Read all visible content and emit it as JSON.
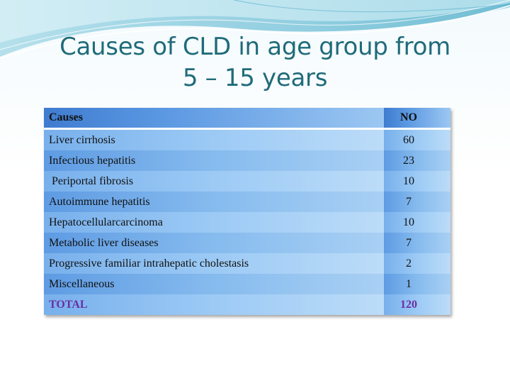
{
  "title": {
    "line1": "Causes of CLD in age group from",
    "line2": "5 – 15 years"
  },
  "table": {
    "headers": {
      "cause": "Causes",
      "number": "NO"
    },
    "rows": [
      {
        "cause": "Liver cirrhosis",
        "number": "60"
      },
      {
        "cause": "Infectious hepatitis",
        "number": "23"
      },
      {
        "cause": "Periportal fibrosis",
        "number": "10"
      },
      {
        "cause": "Autoimmune hepatitis",
        "number": "7"
      },
      {
        "cause": "Hepatocellularcarcinoma",
        "number": "10"
      },
      {
        "cause": "Metabolic liver diseases",
        "number": "7"
      },
      {
        "cause": "Progressive familiar intrahepatic cholestasis",
        "number": "2"
      },
      {
        "cause": "Miscellaneous",
        "number": "1"
      }
    ],
    "total": {
      "cause": "TOTAL",
      "number": "120"
    }
  },
  "colors": {
    "title": "#1f6b7a",
    "total_text": "#6b2fa3",
    "header_blue": "#3f7cd0"
  }
}
